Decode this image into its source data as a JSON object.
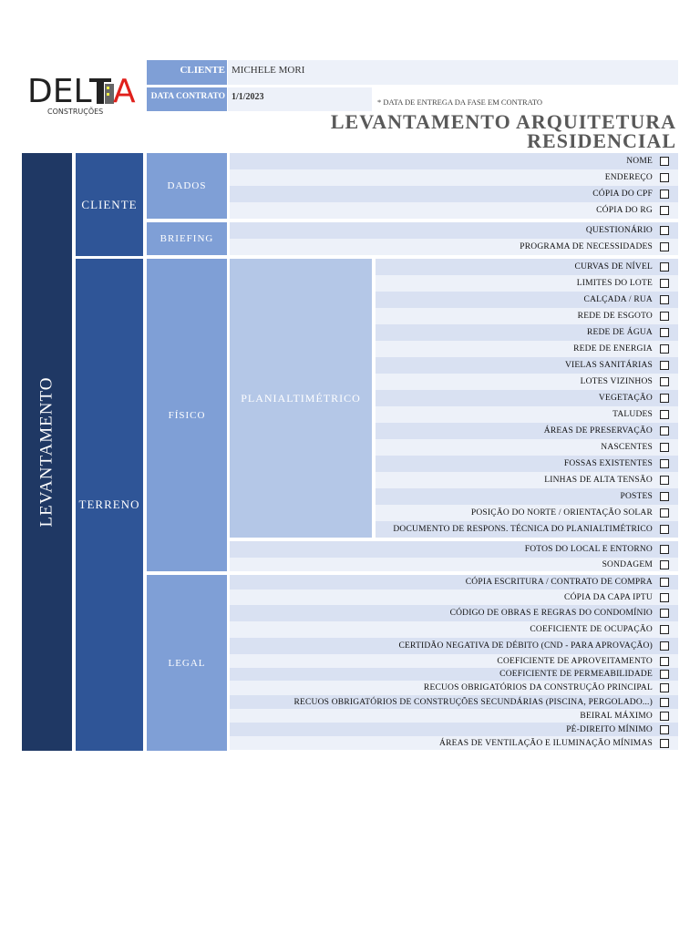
{
  "logo": {
    "text": "DELTA",
    "sub": "CONSTRUÇÕES"
  },
  "header": {
    "client_label": "CLIENTE",
    "client_value": "MICHELE MORI",
    "date_label": "DATA CONTRATO",
    "date_value": "1/1/2023",
    "note": "* DATA DE ENTREGA DA FASE EM CONTRATO",
    "title_line1": "LEVANTAMENTO ARQUITETURA",
    "title_line2": "RESIDENCIAL"
  },
  "colors": {
    "navy": "#1f3864",
    "blue": "#2f5597",
    "mid": "#7f9fd6",
    "light": "#b4c7e7",
    "row_dark": "#d9e1f2",
    "row_light": "#edf1f9"
  },
  "groups": {
    "main": "LEVANTAMENTO",
    "cliente": "CLIENTE",
    "terreno": "TERRENO",
    "dados": "DADOS",
    "briefing": "BRIEFING",
    "fisico": "FÍSICO",
    "legal": "LEGAL",
    "planialtimetrico": "PLANIALTIMÉTRICO"
  },
  "dados": [
    "NOME",
    "ENDEREÇO",
    "CÓPIA DO CPF",
    "CÓPIA DO RG"
  ],
  "briefing": [
    "QUESTIONÁRIO",
    "PROGRAMA DE NECESSIDADES"
  ],
  "planialtimetrico": [
    "CURVAS DE NÍVEL",
    "LIMITES DO LOTE",
    "CALÇADA / RUA",
    "REDE DE ESGOTO",
    "REDE DE ÁGUA",
    "REDE DE ENERGIA",
    "VIELAS SANITÁRIAS",
    "LOTES VIZINHOS",
    "VEGETAÇÃO",
    "TALUDES",
    "ÁREAS DE PRESERVAÇÃO",
    "NASCENTES",
    "FOSSAS EXISTENTES",
    "LINHAS DE ALTA TENSÃO",
    "POSTES",
    "POSIÇÃO DO NORTE / ORIENTAÇÃO SOLAR",
    "DOCUMENTO DE RESPONS. TÉCNICA DO PLANIALTIMÉTRICO"
  ],
  "fisico_extra": [
    "FOTOS DO LOCAL E ENTORNO",
    "SONDAGEM"
  ],
  "legal": [
    "CÓPIA ESCRITURA / CONTRATO DE COMPRA",
    "CÓPIA DA CAPA IPTU",
    "CÓDIGO DE OBRAS E REGRAS DO CONDOMÍNIO",
    "COEFICIENTE DE OCUPAÇÃO",
    "CERTIDÃO NEGATIVA DE DÉBITO (CND - PARA APROVAÇÃO)",
    "COEFICIENTE DE APROVEITAMENTO",
    "COEFICIENTE DE PERMEABILIDADE",
    "RECUOS OBRIGATÓRIOS DA CONSTRUÇÃO PRINCIPAL",
    "RECUOS OBRIGATÓRIOS DE CONSTRUÇÕES SECUNDÁRIAS (PISCINA, PERGOLADO...)",
    "BEIRAL MÁXIMO",
    "PÉ-DIREITO MÍNIMO",
    "ÁREAS DE VENTILAÇÃO E ILUMINAÇÃO MÍNIMAS"
  ]
}
